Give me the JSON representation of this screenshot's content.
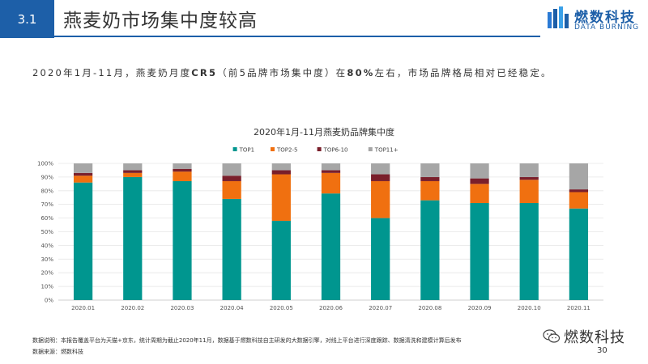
{
  "header": {
    "section": "3.1",
    "title": "燕麦奶市场集中度较高",
    "logo_cn": "燃数科技",
    "logo_en": "DATA BURNING"
  },
  "subtitle": {
    "part1": "2020年1月-11月，燕麦奶月度",
    "bold1": "CR5",
    "part2": "（前5品牌市场集中度）在",
    "bold2": "80%",
    "part3": "左右，市场品牌格局相对已经稳定。"
  },
  "chart_data": {
    "type": "bar",
    "stacked": true,
    "title": "2020年1月-11月燕麦奶品牌集中度",
    "categories": [
      "2020.01",
      "2020.02",
      "2020.03",
      "2020.04",
      "2020.05",
      "2020.06",
      "2020.07",
      "2020.08",
      "2020.09",
      "2020.10",
      "2020.11"
    ],
    "series": [
      {
        "name": "TOP1",
        "color": "#00968f",
        "values": [
          86,
          90,
          87,
          74,
          58,
          78,
          60,
          73,
          71,
          71,
          67
        ]
      },
      {
        "name": "TOP2-5",
        "color": "#f07010",
        "values": [
          5,
          3,
          7,
          13,
          34,
          15,
          27,
          14,
          14,
          17,
          12
        ]
      },
      {
        "name": "TOP6-10",
        "color": "#7a1f2b",
        "values": [
          2,
          2,
          2,
          4,
          3,
          2,
          5,
          3,
          4,
          2,
          2
        ]
      },
      {
        "name": "TOP11+",
        "color": "#a6a6a6",
        "values": [
          7,
          5,
          4,
          9,
          5,
          5,
          8,
          10,
          11,
          10,
          19
        ]
      }
    ],
    "yticks": [
      "0%",
      "10%",
      "20%",
      "30%",
      "40%",
      "50%",
      "60%",
      "70%",
      "80%",
      "90%",
      "100%"
    ],
    "ylim": [
      0,
      100
    ],
    "legend_position": "top-center"
  },
  "footer": {
    "note": "数据说明：本报告覆盖平台为天猫+京东，统计周期为截止2020年11月，数据基于燃数科技自主研发的大数据引擎，对线上平台进行深度跟踪、数据清洗和建模计算后发布",
    "source": "数据来源：燃数科技",
    "wechat_name": "燃数科技",
    "page_number": "30"
  }
}
